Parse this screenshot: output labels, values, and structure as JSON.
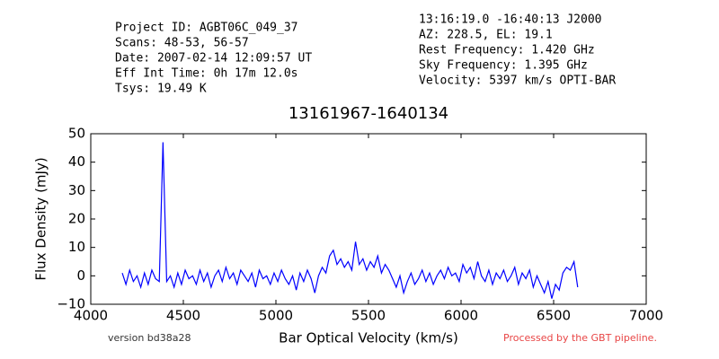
{
  "chart_data": {
    "type": "line",
    "header_left": [
      "Project ID: AGBT06C_049_37",
      "Scans: 48-53, 56-57",
      "Date: 2007-02-14 12:09:57 UT",
      "Eff Int Time: 0h 17m 12.0s",
      "Tsys: 19.49 K"
    ],
    "header_right": [
      "13:16:19.0 -16:40:13 J2000",
      "AZ: 228.5, EL: 19.1",
      "Rest Frequency:   1.420 GHz",
      "Sky Frequency:    1.395 GHz",
      "Velocity: 5397 km/s OPTI-BAR"
    ],
    "title": "13161967-1640134",
    "xlabel": "Bar Optical Velocity (km/s)",
    "ylabel": "Flux Density (mJy)",
    "footer_left": "version bd38a28",
    "footer_right": "Processed by the GBT pipeline.",
    "color": "#0000ff",
    "xlim": [
      4000,
      7000
    ],
    "ylim": [
      -10,
      50
    ],
    "xticks": [
      4000,
      4500,
      5000,
      5500,
      6000,
      6500,
      7000
    ],
    "yticks": [
      {
        "value": -10,
        "label": "−10"
      },
      0,
      10,
      20,
      30,
      40,
      50
    ],
    "x": [
      4170,
      4190,
      4210,
      4230,
      4250,
      4270,
      4290,
      4310,
      4330,
      4350,
      4370,
      4390,
      4410,
      4430,
      4450,
      4470,
      4490,
      4510,
      4530,
      4550,
      4570,
      4590,
      4610,
      4630,
      4650,
      4670,
      4690,
      4710,
      4730,
      4750,
      4770,
      4790,
      4810,
      4830,
      4850,
      4870,
      4890,
      4910,
      4930,
      4950,
      4970,
      4990,
      5010,
      5030,
      5050,
      5070,
      5090,
      5110,
      5130,
      5150,
      5170,
      5190,
      5210,
      5230,
      5250,
      5270,
      5290,
      5310,
      5330,
      5350,
      5370,
      5390,
      5410,
      5430,
      5450,
      5470,
      5490,
      5510,
      5530,
      5550,
      5570,
      5590,
      5610,
      5630,
      5650,
      5670,
      5690,
      5710,
      5730,
      5750,
      5770,
      5790,
      5810,
      5830,
      5850,
      5870,
      5890,
      5910,
      5930,
      5950,
      5970,
      5990,
      6010,
      6030,
      6050,
      6070,
      6090,
      6110,
      6130,
      6150,
      6170,
      6190,
      6210,
      6230,
      6250,
      6270,
      6290,
      6310,
      6330,
      6350,
      6370,
      6390,
      6410,
      6430,
      6450,
      6470,
      6490,
      6510,
      6530,
      6550,
      6570,
      6590,
      6610,
      6630
    ],
    "values": [
      1,
      -3,
      2,
      -2,
      0,
      -4,
      1,
      -3,
      2,
      -1,
      -2,
      47,
      -2,
      0,
      -4,
      1,
      -3,
      2,
      -1,
      0,
      -3,
      2,
      -2,
      1,
      -4,
      0,
      2,
      -2,
      3,
      -1,
      1,
      -3,
      2,
      0,
      -2,
      1,
      -4,
      2,
      -1,
      0,
      -3,
      1,
      -2,
      2,
      -1,
      -3,
      0,
      -5,
      1,
      -2,
      2,
      -1,
      -6,
      0,
      3,
      1,
      7,
      9,
      4,
      6,
      3,
      5,
      2,
      12,
      4,
      6,
      2,
      5,
      3,
      7,
      1,
      4,
      2,
      -1,
      -4,
      0,
      -6,
      -2,
      1,
      -3,
      -1,
      2,
      -2,
      1,
      -3,
      0,
      2,
      -1,
      3,
      0,
      1,
      -2,
      4,
      1,
      3,
      -1,
      5,
      0,
      -2,
      2,
      -3,
      1,
      -1,
      2,
      -2,
      0,
      3,
      -3,
      1,
      -1,
      2,
      -4,
      0,
      -3,
      -6,
      -2,
      -8,
      -3,
      -5,
      1,
      3,
      2,
      5,
      -4
    ]
  }
}
